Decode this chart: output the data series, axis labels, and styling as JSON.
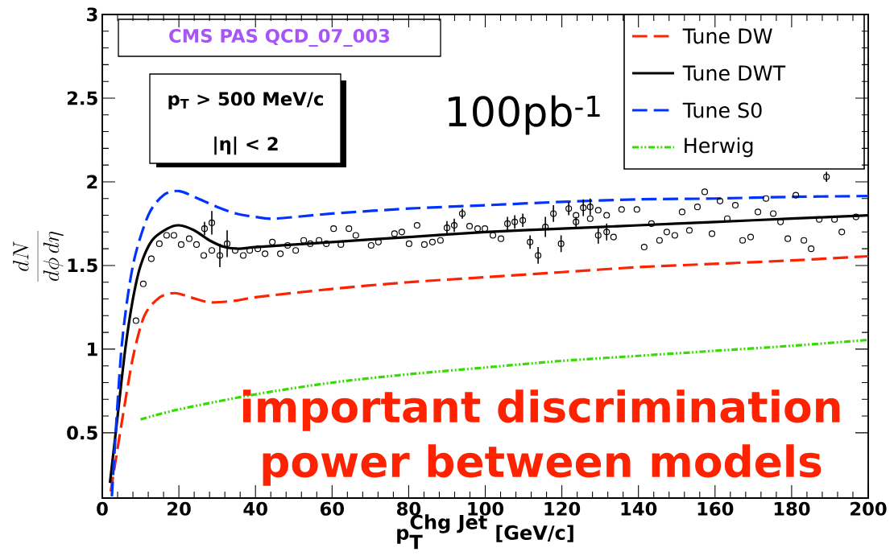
{
  "chart_data": {
    "type": "line",
    "xlabel": "\\textbf{p}_{\\textbf{T}}^{\\textbf{Chg Jet}}\\ \\textbf{[GeV/c]}",
    "ylabel": "\\frac{dN}{d\\phi\\, d\\eta}",
    "xlim": [
      0,
      200
    ],
    "ylim": [
      0.11,
      3
    ],
    "xticks": [
      0,
      20,
      40,
      60,
      80,
      100,
      120,
      140,
      160,
      180,
      200
    ],
    "yticks": [
      0.5,
      1,
      1.5,
      2,
      2.5,
      3
    ],
    "grid": false,
    "legend": "top right",
    "annotations": [
      "CMS PAS QCD_07_003",
      "p$_{T}$ > 500 MeV/c",
      "|η| < 2",
      "100pb$^{-1}$",
      "important discrimination",
      "power between models"
    ],
    "series": [
      {
        "name": "Tune DW",
        "color": "#ff2200",
        "line_style": "dashed",
        "x": [
          2.2,
          5,
          8,
          11,
          15,
          19,
          23,
          28,
          35,
          40,
          60,
          80,
          100,
          120,
          140,
          160,
          180,
          200
        ],
        "values": [
          0.15,
          0.55,
          0.95,
          1.2,
          1.31,
          1.335,
          1.31,
          1.28,
          1.29,
          1.31,
          1.36,
          1.4,
          1.43,
          1.46,
          1.49,
          1.51,
          1.53,
          1.555
        ]
      },
      {
        "name": "Tune DWT",
        "color": "#000000",
        "line_style": "solid",
        "x": [
          2,
          4,
          6,
          8,
          10,
          13,
          17,
          20,
          24,
          28,
          32,
          36,
          40,
          60,
          80,
          100,
          120,
          140,
          160,
          180,
          200
        ],
        "values": [
          0.2,
          0.6,
          1.0,
          1.3,
          1.5,
          1.65,
          1.72,
          1.74,
          1.71,
          1.65,
          1.61,
          1.6,
          1.61,
          1.64,
          1.67,
          1.7,
          1.72,
          1.74,
          1.76,
          1.78,
          1.8
        ]
      },
      {
        "name": "Tune S0",
        "color": "#0033ff",
        "line_style": "dashed",
        "x": [
          2.5,
          5,
          8,
          12,
          16,
          20,
          25,
          30,
          35,
          40,
          45,
          60,
          80,
          100,
          120,
          140,
          160,
          180,
          200
        ],
        "values": [
          0.12,
          1.0,
          1.5,
          1.8,
          1.92,
          1.945,
          1.9,
          1.85,
          1.81,
          1.79,
          1.78,
          1.81,
          1.84,
          1.86,
          1.88,
          1.895,
          1.9,
          1.91,
          1.915
        ]
      },
      {
        "name": "Herwig",
        "color": "#33dd00",
        "line_style": "dotted",
        "x": [
          10,
          20,
          40,
          60,
          80,
          100,
          120,
          140,
          160,
          180,
          200
        ],
        "values": [
          0.58,
          0.64,
          0.73,
          0.8,
          0.85,
          0.89,
          0.93,
          0.96,
          0.99,
          1.02,
          1.055
        ]
      },
      {
        "type": "scatter",
        "color": "#000000",
        "marker": "circle",
        "x": [
          8.8,
          10.7,
          12.8,
          14.9,
          16.8,
          18.7,
          20.6,
          22.7,
          24.6,
          26.5,
          26.7,
          28.6,
          28.6,
          30.7,
          32.6,
          34.7,
          36.8,
          38.5,
          40.6,
          42.5,
          44.4,
          46.5,
          48.4,
          50.5,
          52.6,
          54.3,
          56.6,
          58.5,
          60.4,
          62.3,
          64.4,
          66.2,
          70.2,
          72.1,
          76.3,
          78.2,
          80.1,
          82.2,
          84.1,
          86.2,
          88.3,
          90,
          91.9,
          94,
          95.9,
          98,
          99.9,
          102,
          104.1,
          105.8,
          107.7,
          109.8,
          111.7,
          113.8,
          115.7,
          117.8,
          119.8,
          121.8,
          123.7,
          123.7,
          125.6,
          127.4,
          127.4,
          129.5,
          129.5,
          131.7,
          131.7,
          133.5,
          135.6,
          139.6,
          141.5,
          143.4,
          145.5,
          147.4,
          149.5,
          151.4,
          153.3,
          155.4,
          157.3,
          159.2,
          161.3,
          163.2,
          165.3,
          167.2,
          169.3,
          171.2,
          173.3,
          175.2,
          177.1,
          179,
          181.1,
          183.2,
          185.1,
          187.2,
          189.1,
          191.2,
          193.1,
          196.8
        ],
        "values": [
          1.17,
          1.39,
          1.54,
          1.63,
          1.68,
          1.68,
          1.625,
          1.66,
          1.625,
          1.56,
          1.72,
          1.755,
          1.59,
          1.56,
          1.63,
          1.59,
          1.56,
          1.59,
          1.6,
          1.57,
          1.64,
          1.57,
          1.62,
          1.59,
          1.65,
          1.63,
          1.65,
          1.63,
          1.72,
          1.625,
          1.72,
          1.68,
          1.62,
          1.64,
          1.69,
          1.7,
          1.63,
          1.74,
          1.625,
          1.64,
          1.65,
          1.725,
          1.74,
          1.81,
          1.735,
          1.72,
          1.72,
          1.68,
          1.66,
          1.75,
          1.76,
          1.77,
          1.64,
          1.56,
          1.73,
          1.81,
          1.63,
          1.84,
          1.8,
          1.76,
          1.845,
          1.85,
          1.78,
          1.83,
          1.68,
          1.8,
          1.7,
          1.67,
          1.835,
          1.835,
          1.61,
          1.75,
          1.65,
          1.7,
          1.68,
          1.82,
          1.71,
          1.85,
          1.94,
          1.69,
          1.885,
          1.78,
          1.86,
          1.65,
          1.67,
          1.82,
          1.9,
          1.81,
          1.76,
          1.66,
          1.92,
          1.65,
          1.6,
          1.775,
          2.03,
          1.775,
          1.7,
          1.79
        ],
        "errors": [
          null,
          null,
          null,
          null,
          null,
          null,
          null,
          null,
          null,
          null,
          0.04,
          0.07,
          null,
          0.07,
          0.08,
          null,
          null,
          null,
          null,
          null,
          null,
          null,
          null,
          null,
          null,
          null,
          null,
          null,
          null,
          null,
          null,
          null,
          null,
          null,
          null,
          null,
          null,
          null,
          null,
          null,
          null,
          0.04,
          0.04,
          0.03,
          null,
          null,
          null,
          null,
          null,
          0.04,
          0.04,
          0.04,
          0.04,
          0.05,
          0.06,
          0.05,
          0.05,
          0.04,
          null,
          0.03,
          0.05,
          0.05,
          null,
          null,
          0.05,
          null,
          0.05,
          null,
          null,
          null,
          null,
          null,
          null,
          null,
          null,
          null,
          null,
          null,
          null,
          null,
          null,
          null,
          null,
          null,
          null,
          null,
          null,
          null,
          null,
          null,
          null,
          null,
          null,
          null,
          0.03,
          null,
          null,
          null
        ]
      }
    ]
  }
}
